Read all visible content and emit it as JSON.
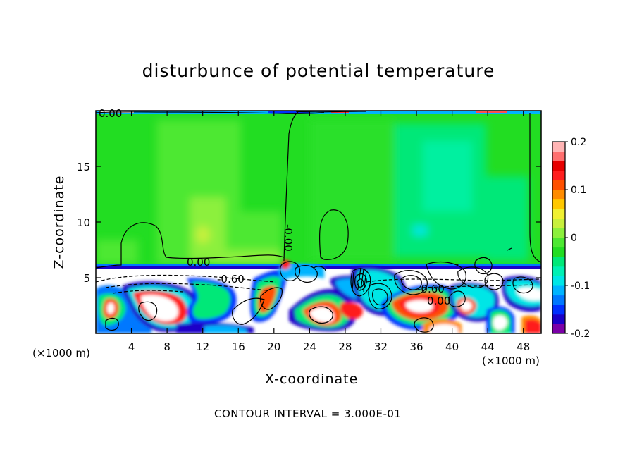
{
  "chart_data": {
    "type": "heatmap",
    "title": "disturbunce of potential temperature",
    "xlabel": "X-coordinate",
    "ylabel": "Z-coordinate",
    "x_unit_label": "(×1000 m)",
    "x_unit_label_right": "(×1000 m)",
    "footer": "CONTOUR INTERVAL = 3.000E-01",
    "xlim": [
      0,
      50
    ],
    "ylim": [
      0,
      20
    ],
    "x_ticks": [
      4,
      8,
      12,
      16,
      20,
      24,
      28,
      32,
      36,
      40,
      44,
      48
    ],
    "y_ticks": [
      5,
      10,
      15
    ],
    "colorbar": {
      "range": [
        -0.2,
        0.2
      ],
      "tick_labels": [
        "0.2",
        "0.1",
        "0",
        "-0.1",
        "-0.2"
      ],
      "tick_values": [
        0.2,
        0.1,
        0,
        -0.1,
        -0.2
      ],
      "colors": [
        "#7b00a8",
        "#1a00c8",
        "#0030ff",
        "#0078ff",
        "#00b4ff",
        "#00e6e6",
        "#00f0b4",
        "#00e878",
        "#22dd22",
        "#4de832",
        "#8cf03c",
        "#c8f03c",
        "#f0f032",
        "#ffc800",
        "#ff8c00",
        "#ff5000",
        "#ff1e1e",
        "#e60000",
        "#ff6e6e",
        "#ffb4b4"
      ]
    },
    "contour_labels": [
      "0.00",
      "0.00",
      "0.00",
      "-0.60",
      "-0.60",
      "-0.60",
      "0.00",
      "-0.00"
    ]
  }
}
